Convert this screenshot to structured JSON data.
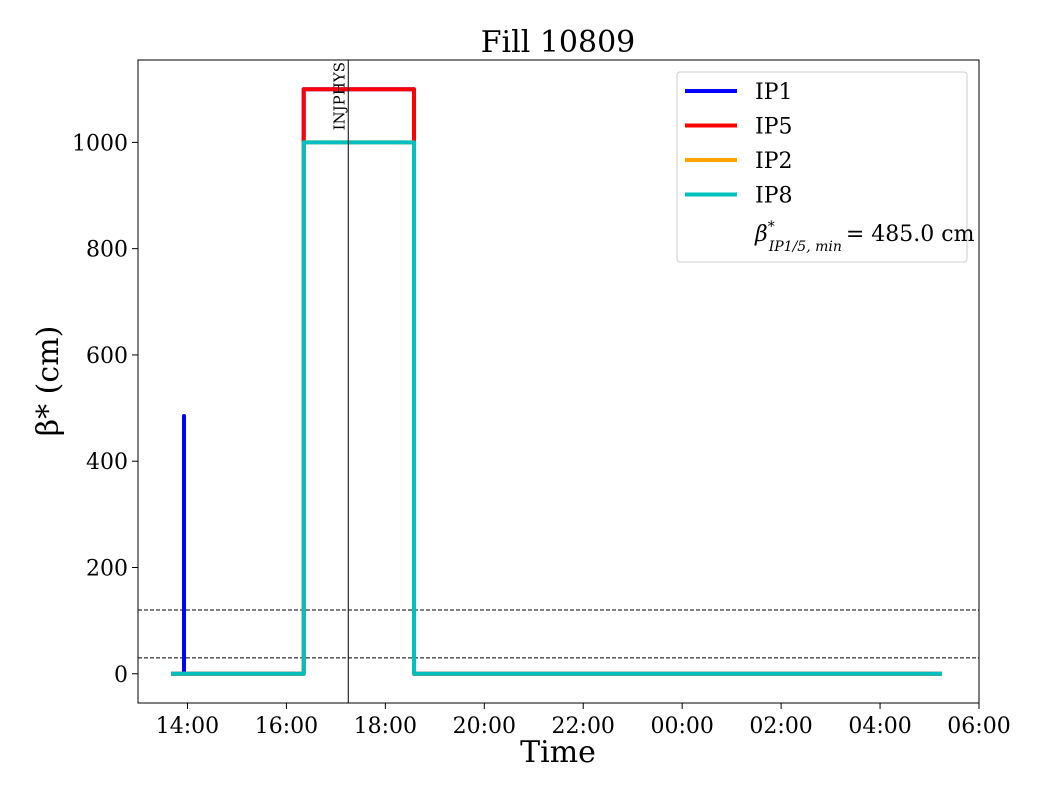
{
  "chart_data": {
    "type": "line",
    "title": "Fill 10809",
    "xlabel": "Time",
    "ylabel": "β* (cm)",
    "x_unit": "hours since 00:00 of fill start day (values beyond 24 continue into the next day)",
    "xlim": [
      13.0,
      30.0
    ],
    "ylim": [
      -55,
      1155
    ],
    "xticks": [
      14,
      16,
      18,
      20,
      22,
      24,
      26,
      28,
      30
    ],
    "xtick_labels": [
      "14:00",
      "16:00",
      "18:00",
      "20:00",
      "22:00",
      "00:00",
      "02:00",
      "04:00",
      "06:00"
    ],
    "yticks": [
      0,
      200,
      400,
      600,
      800,
      1000
    ],
    "ytick_labels": [
      "0",
      "200",
      "400",
      "600",
      "800",
      "1000"
    ],
    "series": [
      {
        "name": "IP1",
        "color": "#0000ff",
        "points": [
          [
            13.67,
            0
          ],
          [
            13.93,
            0
          ],
          [
            13.93,
            485
          ],
          [
            13.93,
            0
          ],
          [
            16.35,
            0
          ],
          [
            16.35,
            1100
          ],
          [
            18.58,
            1100
          ],
          [
            18.58,
            0
          ],
          [
            29.25,
            0
          ]
        ]
      },
      {
        "name": "IP5",
        "color": "#ff0000",
        "points": [
          [
            13.67,
            0
          ],
          [
            16.35,
            0
          ],
          [
            16.35,
            1100
          ],
          [
            18.58,
            1100
          ],
          [
            18.58,
            0
          ],
          [
            29.25,
            0
          ]
        ]
      },
      {
        "name": "IP2",
        "color": "#ffa500",
        "points": [
          [
            13.67,
            0
          ],
          [
            16.35,
            0
          ],
          [
            16.35,
            1000
          ],
          [
            18.58,
            1000
          ],
          [
            18.58,
            0
          ],
          [
            29.25,
            0
          ]
        ]
      },
      {
        "name": "IP8",
        "color": "#00bfbf",
        "points": [
          [
            13.67,
            0
          ],
          [
            16.35,
            0
          ],
          [
            16.35,
            1000
          ],
          [
            18.58,
            1000
          ],
          [
            18.58,
            0
          ],
          [
            29.25,
            0
          ]
        ]
      }
    ],
    "hlines": [
      {
        "y": 120,
        "style": "dashed",
        "color": "#000000"
      },
      {
        "y": 30,
        "style": "dashed",
        "color": "#000000"
      }
    ],
    "vlines": [
      {
        "x": 17.25,
        "label": "INJPHYS",
        "color": "#000000"
      }
    ],
    "legend": {
      "position": "top-right",
      "items": [
        {
          "label": "IP1",
          "color": "#0000ff"
        },
        {
          "label": "IP5",
          "color": "#ff0000"
        },
        {
          "label": "IP2",
          "color": "#ffa500"
        },
        {
          "label": "IP8",
          "color": "#00bfbf"
        }
      ],
      "beta_prefix": "β",
      "beta_sup": "*",
      "beta_sub": "IP1/5, min",
      "beta_value": "= 485.0 cm"
    },
    "grid": false
  }
}
